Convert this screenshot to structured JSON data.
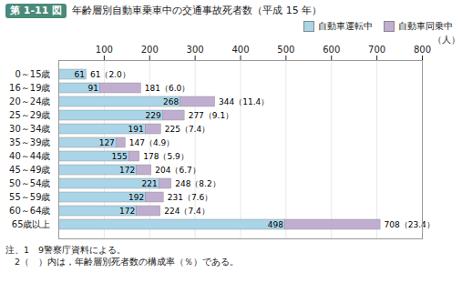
{
  "chart_data": {
    "type": "bar",
    "orientation": "horizontal",
    "stacked": true,
    "title": "年齢層別自動車乗車中の交通事故死者数（平成 15 年）",
    "annotations": [
      "第 1-11 図",
      "注、1　9警察庁資料による。",
      "　2（　）内は，年齢層別死者数の構成率（％）である。"
    ],
    "xlabel": "（人）",
    "categories": [
      "0～15歳",
      "16～19歳",
      "20～24歳",
      "25～29歳",
      "30～34歳",
      "35～39歳",
      "40～44歳",
      "45～49歳",
      "50～54歳",
      "55～59歳",
      "60～64歳",
      "65歳以上"
    ],
    "series": [
      {
        "name": "自動車運転中",
        "color": "#aad4e8",
        "values": [
          61,
          91,
          268,
          229,
          191,
          127,
          155,
          172,
          221,
          192,
          172,
          498
        ],
        "data_labels": true
      },
      {
        "name": "自動車同乗中",
        "color": "#c0aed0",
        "values": [
          0,
          90,
          76,
          48,
          34,
          20,
          23,
          32,
          27,
          39,
          52,
          210
        ]
      }
    ],
    "totals": [
      61,
      181,
      344,
      277,
      225,
      147,
      178,
      204,
      248,
      231,
      224,
      708
    ],
    "total_labels": [
      "61（2.0）",
      "181（6.0）",
      "344（11.4）",
      "277（9.1）",
      "225（7.4）",
      "147（4.9）",
      "178（5.9）",
      "204（6.7）",
      "248（8.2）",
      "231（7.6）",
      "224（7.4）",
      "708（23.4）"
    ],
    "xlim": [
      0,
      800
    ],
    "xticks": [
      100,
      200,
      300,
      400,
      500,
      600,
      700,
      800
    ],
    "grid": true,
    "legend": "upper right"
  }
}
